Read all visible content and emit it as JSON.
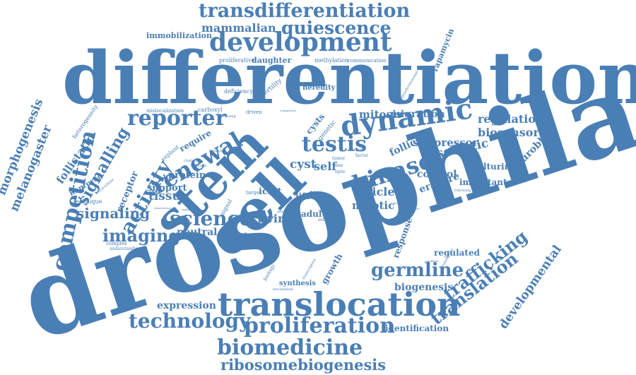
{
  "accent_color": "#4a7fb5",
  "words": {
    "drosophila": "drosophila",
    "differentiation": "differentiation",
    "stem": "stem",
    "cell": "cell",
    "translocation": "translocation",
    "development": "development",
    "transdifferentiation": "transdifferentiation",
    "dynamic": "dynamic",
    "proliferation": "proliferation",
    "biomedicine": "biomedicine",
    "ribosomebiogenesis": "ribosomebiogenesis",
    "technology": "technology",
    "competition": "competition",
    "kinase": "kinase",
    "renewal": "renewal",
    "testis": "testis",
    "activity": "activity",
    "reporter": "reporter",
    "science": "science",
    "germline": "germline",
    "quiescence": "quiescence",
    "mammalian": "mammalian",
    "imaging": "imaging",
    "signaling": "signaling",
    "signalling": "signalling",
    "translation": "translation",
    "trafficking": "trafficking",
    "developmental": "developmental",
    "morphogenesis": "morphogenesis",
    "melanogaster": "melanogaster",
    "follistatin": "follistatin",
    "regulation": "regulation",
    "biosensor": "biosensor",
    "mitosis": "mitosis",
    "migration": "migration",
    "suppressor": "suppressor",
    "somatic": "somatic",
    "follicle": "follicle",
    "control": "control",
    "culturing": "culturing",
    "erasure": "erasure",
    "important": "important",
    "neuroblast": "neuroblast",
    "vesicle": "vesicle",
    "mitotic": "mitotic",
    "cyst": "cyst",
    "self": "self",
    "icmt": "icmt",
    "life": "life",
    "live": "live",
    "activin": "activin",
    "adult": "adult",
    "response": "response",
    "regulated": "regulated",
    "biogenesis": "biogenesis",
    "identification": "identification",
    "expression": "expression",
    "tissue": "tissue",
    "protein": "protein",
    "support": "support",
    "neutral": "neutral",
    "receptor": "receptor",
    "immobilization": "immobilization",
    "rapamycin": "rapamycin",
    "proliferative": "proliferative",
    "daughter": "daughter",
    "methylation": "methylation",
    "communication": "communication",
    "deficiency": "deficiency",
    "fertility": "fertility",
    "heredity": "heredity",
    "extrachromosomal": "extrachromosomal",
    "mislocalization": "mislocalization",
    "carboxyl": "carboxyl",
    "secreting": "secreting",
    "driven": "driven",
    "component": "component",
    "cysts": "cysts",
    "genetic": "genetic",
    "heterogeneity": "heterogeneity",
    "improved": "improved",
    "technique": "technique",
    "complex": "complex",
    "understanding": "understanding",
    "extracellular": "extracellular",
    "require": "require",
    "explant": "explant",
    "challenge": "challenge",
    "maintain": "maintain",
    "identity": "identity",
    "observation": "observation",
    "explained": "explained",
    "target": "target",
    "signal": "signal",
    "model": "model",
    "gene": "gene",
    "zebra": "zebra",
    "tumor": "tumor",
    "time": "time",
    "optic": "optic",
    "aging": "aging",
    "reveal": "reveal",
    "factor": "factor",
    "cellular": "cellular",
    "change": "change",
    "growth": "growth",
    "synthesis": "synthesis",
    "mechanism": "mechanism",
    "biology": "biology",
    "transcription": "transcription",
    "activation": "activation",
    "progression": "progression",
    "transgenic": "transgenic",
    "embryo": "embryo",
    "homeostasis": "homeostasis",
    "candidate": "candidate",
    "following": "following",
    "determination": "determination",
    "resource": "resource"
  }
}
